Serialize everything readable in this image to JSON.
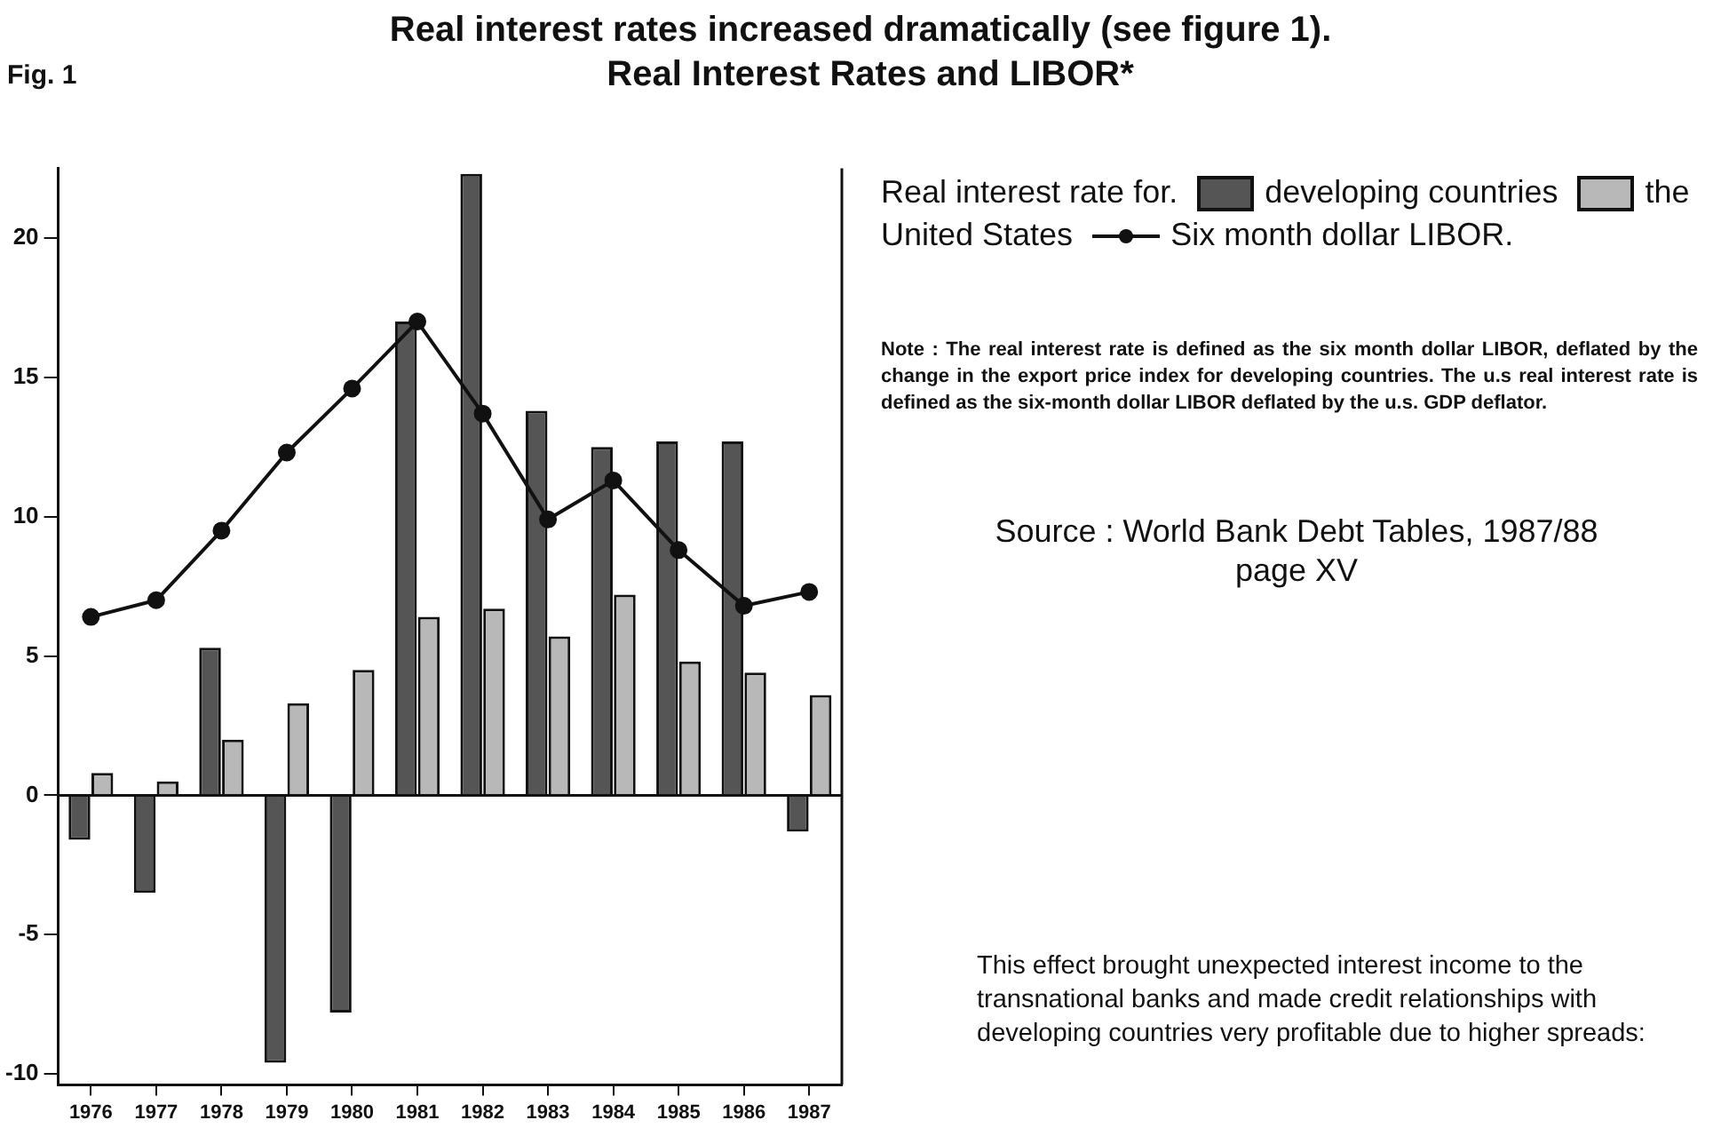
{
  "chart_data": {
    "type": "bar",
    "title": "Real Interest Rates and LIBOR*",
    "categories": [
      "1976",
      "1977",
      "1978",
      "1979",
      "1980",
      "1981",
      "1982",
      "1983",
      "1984",
      "1985",
      "1986",
      "1987"
    ],
    "series": [
      {
        "name": "developing countries",
        "color": "#555555",
        "values": [
          -1.6,
          -3.5,
          5.3,
          -9.6,
          -7.8,
          17.0,
          22.3,
          13.8,
          12.5,
          12.7,
          12.7,
          -1.3
        ]
      },
      {
        "name": "the United States",
        "color": "#b8b8b8",
        "values": [
          0.8,
          0.5,
          2.0,
          3.3,
          4.5,
          6.4,
          6.7,
          5.7,
          7.2,
          4.8,
          4.4,
          3.6
        ]
      },
      {
        "name": "Six month dollar LIBOR.",
        "type": "line",
        "color": "#111111",
        "marker": "circle",
        "line_style": "solid",
        "values": [
          6.4,
          7.0,
          9.5,
          12.3,
          14.6,
          17.0,
          13.7,
          9.9,
          11.3,
          8.8,
          6.8,
          7.3
        ]
      }
    ],
    "legend_title": "Real interest rate for.",
    "ylim": [
      -10.4,
      22.5
    ],
    "yticks": [
      -10,
      -5,
      0,
      5,
      10,
      15,
      20
    ],
    "ref_lines": [
      {
        "axis": "y",
        "value": 0
      }
    ],
    "grid": false,
    "legend": "right",
    "annotations": [
      "Real interest rates increased dramatically (see figure 1).",
      "Fig. 1",
      "Note : The real interest rate is defined as the six month dollar LIBOR, deflated by the change in the export price index for developing countries. The u.s real interest rate is defined as the six-month dollar LIBOR deflated by the u.s. GDP deflator.",
      "Source : World Bank Debt Tables, 1987/88 page XV",
      "This effect brought unexpected interest income to the transnational banks and made credit relationships with developing countries very profitable due to higher spreads:"
    ]
  }
}
